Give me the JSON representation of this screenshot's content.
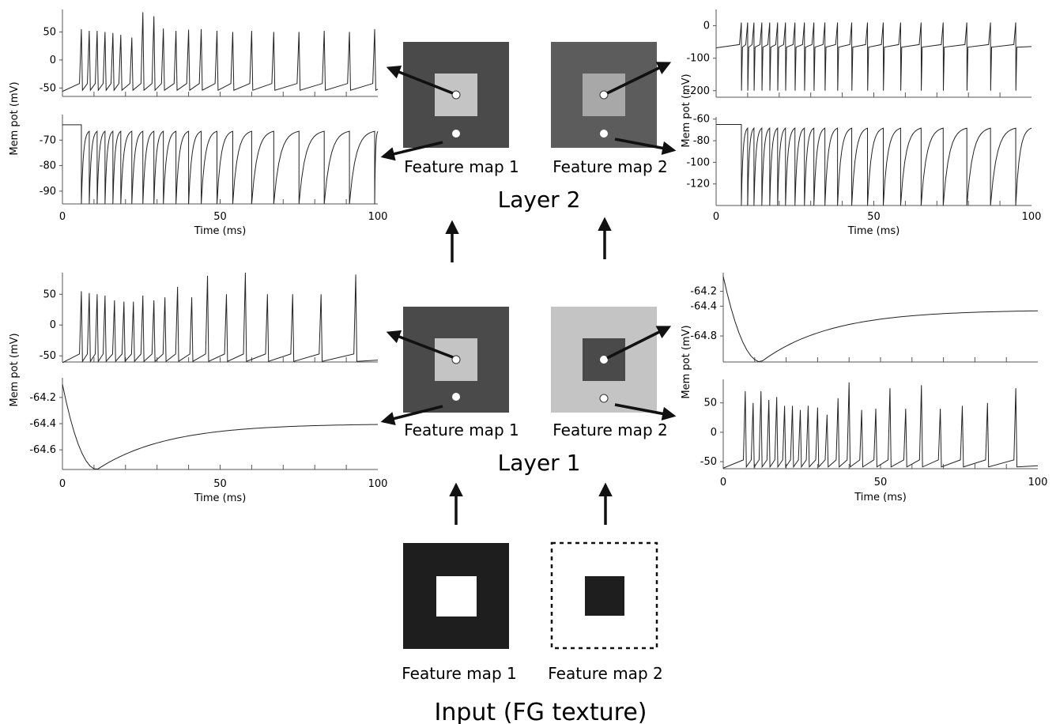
{
  "layer_labels": {
    "layer2": "Layer 2",
    "layer1": "Layer 1",
    "input": "Input (FG texture)"
  },
  "map_labels": {
    "map1": "Feature map 1",
    "map2": "Feature map 2"
  },
  "colors": {
    "dark_gray": "#4a4a4a",
    "mid_gray": "#5c5c5c",
    "light_gray": "#c4c4c4",
    "light_gray_center": "#a8a8a8",
    "black_fill": "#1e1e1e",
    "trace": "#222222"
  },
  "icons": {
    "arrow": "arrow-icon",
    "dot_filled": "white-dot",
    "dot_open": "open-dot"
  },
  "chart_data": [
    {
      "id": "top-left",
      "type": "line",
      "xlabel": "Time (ms)",
      "ylabel": "Mem pot (mV)",
      "xlim": [
        0,
        100
      ],
      "x_ticks": [
        "0",
        "50",
        "100"
      ],
      "panels": [
        {
          "ylim": [
            -65,
            90
          ],
          "y_ticks": [
            "50",
            "0",
            "-50"
          ],
          "y_tick_values": [
            50,
            0,
            -50
          ],
          "series": {
            "kind": "spikes",
            "baseline": -50,
            "peak": 55,
            "spike_times": [
              6,
              8.5,
              11,
              13.5,
              16,
              18.5,
              22,
              25.5,
              29,
              32,
              36,
              40,
              44,
              49,
              54,
              60,
              67,
              75,
              83,
              91,
              99
            ],
            "peaks": [
              55,
              52,
              52,
              50,
              48,
              45,
              40,
              85,
              78,
              56,
              52,
              54,
              55,
              52,
              50,
              52,
              50,
              50,
              52,
              50,
              55
            ]
          }
        },
        {
          "ylim": [
            -95,
            -60
          ],
          "y_ticks": [
            "-70",
            "-80",
            "-90"
          ],
          "y_tick_values": [
            -70,
            -80,
            -90
          ],
          "series": {
            "kind": "inhib",
            "rest": -64,
            "trough": -95,
            "spike_times": [
              6,
              8.5,
              11,
              13.5,
              16,
              18.5,
              22,
              25.5,
              29,
              32,
              36,
              40,
              44,
              49,
              54,
              60,
              67,
              75,
              83,
              91,
              99
            ]
          }
        }
      ]
    },
    {
      "id": "top-right",
      "type": "line",
      "xlabel": "Time (ms)",
      "ylabel": "Mem pot (mV)",
      "xlim": [
        0,
        100
      ],
      "x_ticks": [
        "0",
        "50",
        "100"
      ],
      "panels": [
        {
          "ylim": [
            -220,
            50
          ],
          "y_ticks": [
            "0",
            "-100",
            "-200"
          ],
          "y_tick_values": [
            0,
            -100,
            -200
          ],
          "series": {
            "kind": "spikes_down",
            "baseline": -62,
            "peak": 10,
            "trough": -200,
            "spike_times": [
              8,
              10,
              12,
              14.5,
              17,
              19.5,
              22,
              25,
              28,
              31,
              34.5,
              38.5,
              43,
              48,
              53,
              58.5,
              65,
              72,
              79.5,
              87,
              95
            ]
          }
        },
        {
          "ylim": [
            -140,
            -58
          ],
          "y_ticks": [
            "-60",
            "-80",
            "-100",
            "-120"
          ],
          "y_tick_values": [
            -60,
            -80,
            -100,
            -120
          ],
          "series": {
            "kind": "inhib",
            "rest": -65,
            "trough": -140,
            "spike_times": [
              8,
              10,
              12,
              14.5,
              17,
              19.5,
              22,
              25,
              28,
              31,
              34.5,
              38.5,
              43,
              48,
              53,
              58.5,
              65,
              72,
              79.5,
              87,
              95
            ]
          }
        }
      ]
    },
    {
      "id": "bottom-left",
      "type": "line",
      "xlabel": "Time (ms)",
      "ylabel": "Mem pot (mV)",
      "xlim": [
        0,
        100
      ],
      "x_ticks": [
        "0",
        "50",
        "100"
      ],
      "panels": [
        {
          "ylim": [
            -60,
            85
          ],
          "y_ticks": [
            "50",
            "0",
            "-50"
          ],
          "y_tick_values": [
            50,
            0,
            -50
          ],
          "series": {
            "kind": "spikes",
            "baseline": -55,
            "peak": 55,
            "spike_times": [
              6,
              8.5,
              11,
              13.5,
              16.5,
              19.5,
              22.5,
              25.5,
              29,
              32.5,
              36.5,
              41,
              46,
              52,
              58,
              65,
              73,
              82,
              93
            ],
            "peaks": [
              55,
              52,
              50,
              48,
              40,
              38,
              38,
              48,
              40,
              45,
              62,
              45,
              80,
              50,
              85,
              50,
              50,
              50,
              82
            ]
          }
        },
        {
          "ylim": [
            -64.75,
            -64.05
          ],
          "y_ticks": [
            "-64.2",
            "-64.4",
            "-64.6"
          ],
          "y_tick_values": [
            -64.2,
            -64.4,
            -64.6
          ],
          "series": {
            "kind": "dip",
            "start": -64.1,
            "min": -64.75,
            "t_min": 11,
            "end": -64.4
          }
        }
      ]
    },
    {
      "id": "bottom-right",
      "type": "line",
      "xlabel": "Time (ms)",
      "ylabel": "Mem pot (mV)",
      "xlim": [
        0,
        100
      ],
      "x_ticks": [
        "0",
        "50",
        "100"
      ],
      "panels": [
        {
          "ylim": [
            -65.15,
            -63.95
          ],
          "y_ticks": [
            "-64.2",
            "-64.4",
            "-64.8"
          ],
          "y_tick_values": [
            -64.2,
            -64.4,
            -64.8
          ],
          "series": {
            "kind": "dip",
            "start": -64.0,
            "min": -65.15,
            "t_min": 12,
            "end": -64.45
          }
        },
        {
          "ylim": [
            -62,
            90
          ],
          "y_ticks": [
            "50",
            "0",
            "-50"
          ],
          "y_tick_values": [
            50,
            0,
            -50
          ],
          "series": {
            "kind": "spikes",
            "baseline": -55,
            "peak": 55,
            "spike_times": [
              7,
              9.5,
              12,
              14.5,
              17,
              19.5,
              22,
              24.5,
              27,
              30,
              33,
              36.5,
              40,
              44,
              48.5,
              53,
              58,
              63,
              69,
              76,
              84,
              93
            ],
            "peaks": [
              70,
              50,
              70,
              55,
              60,
              45,
              45,
              38,
              45,
              42,
              30,
              58,
              85,
              38,
              40,
              75,
              40,
              80,
              40,
              45,
              50,
              75
            ]
          }
        }
      ]
    }
  ]
}
